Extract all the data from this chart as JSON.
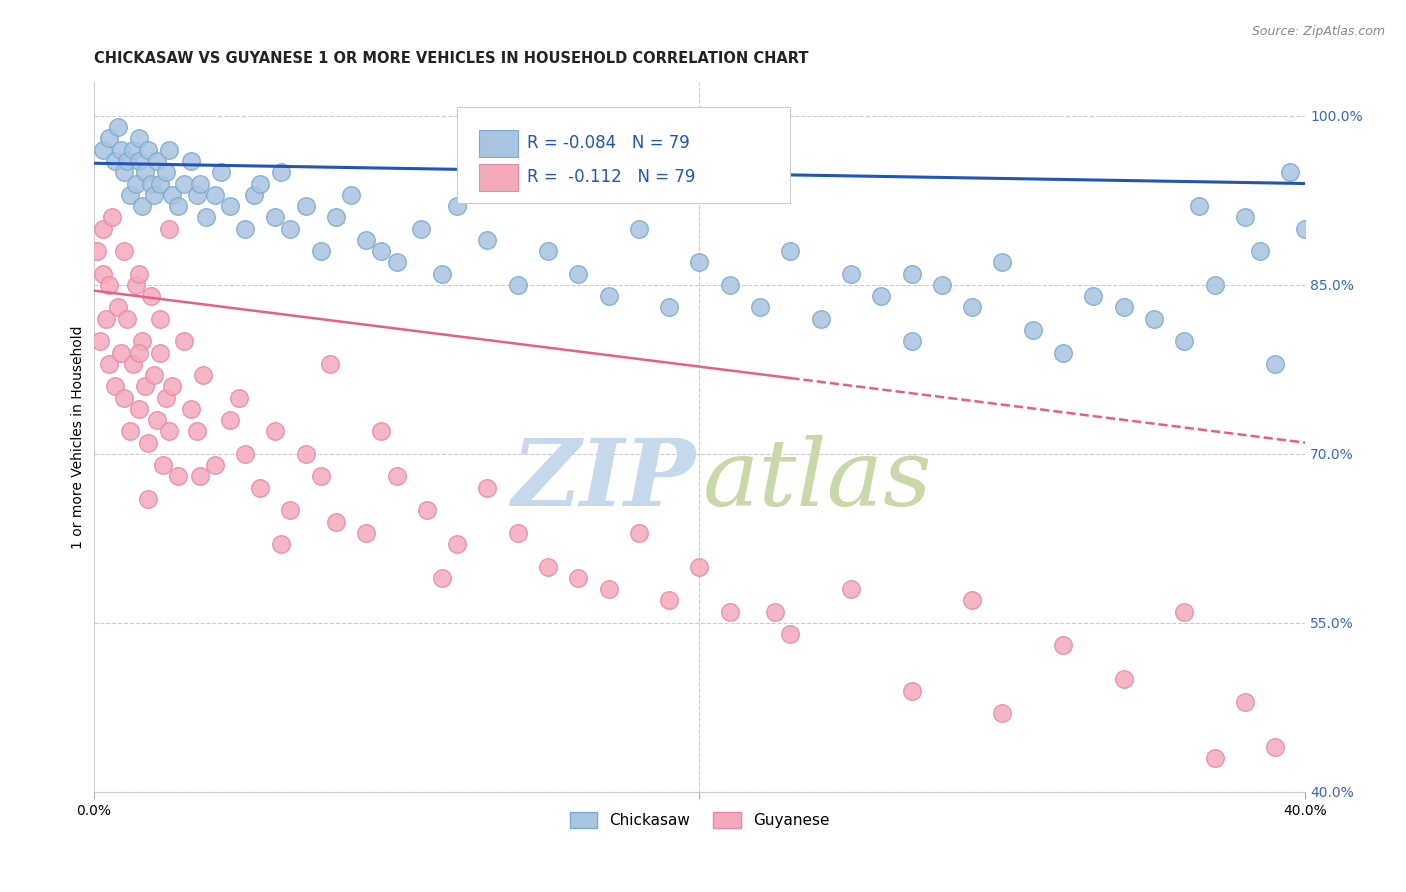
{
  "title": "CHICKASAW VS GUYANESE 1 OR MORE VEHICLES IN HOUSEHOLD CORRELATION CHART",
  "source": "Source: ZipAtlas.com",
  "ylabel": "1 or more Vehicles in Household",
  "legend_blue_label": "Chickasaw",
  "legend_pink_label": "Guyanese",
  "R_blue": -0.084,
  "N_blue": 79,
  "R_pink": -0.112,
  "N_pink": 79,
  "blue_scatter_color": "#A8C4E0",
  "blue_edge_color": "#7AAAD0",
  "pink_scatter_color": "#F4AABB",
  "pink_edge_color": "#E888AA",
  "trendline_blue_color": "#2255BB",
  "trendline_pink_color": "#E8607A",
  "watermark_zip_color": "#C5D8EC",
  "watermark_atlas_color": "#C8D8A8",
  "background_color": "#FFFFFF",
  "grid_color": "#CCCCCC",
  "xmin": 0.0,
  "xmax": 40.0,
  "ymin": 40.0,
  "ymax": 103.0,
  "yticks": [
    40.0,
    55.0,
    70.0,
    85.0,
    100.0
  ],
  "ytick_labels": [
    "40.0%",
    "55.0%",
    "70.0%",
    "85.0%",
    "100.0%"
  ],
  "blue_trend_y0": 95.8,
  "blue_trend_y1": 94.0,
  "pink_trend_y0": 84.5,
  "pink_trend_y1": 71.0,
  "pink_solid_end_x": 23.0,
  "chickasaw_x": [
    0.3,
    0.5,
    0.7,
    0.8,
    0.9,
    1.0,
    1.1,
    1.2,
    1.3,
    1.4,
    1.5,
    1.5,
    1.6,
    1.7,
    1.8,
    1.9,
    2.0,
    2.1,
    2.2,
    2.4,
    2.5,
    2.6,
    2.8,
    3.0,
    3.2,
    3.4,
    3.5,
    3.7,
    4.0,
    4.2,
    4.5,
    5.0,
    5.3,
    5.5,
    6.0,
    6.2,
    6.5,
    7.0,
    7.5,
    8.0,
    8.5,
    9.0,
    9.5,
    10.0,
    10.8,
    11.5,
    12.0,
    13.0,
    14.0,
    15.0,
    16.0,
    17.0,
    18.0,
    19.0,
    20.0,
    21.0,
    22.0,
    23.0,
    24.0,
    25.0,
    26.0,
    27.0,
    28.0,
    29.0,
    30.0,
    31.0,
    32.0,
    33.0,
    35.0,
    36.0,
    37.0,
    38.0,
    38.5,
    39.0,
    39.5,
    40.0,
    27.0,
    36.5,
    34.0
  ],
  "chickasaw_y": [
    97,
    98,
    96,
    99,
    97,
    95,
    96,
    93,
    97,
    94,
    96,
    98,
    92,
    95,
    97,
    94,
    93,
    96,
    94,
    95,
    97,
    93,
    92,
    94,
    96,
    93,
    94,
    91,
    93,
    95,
    92,
    90,
    93,
    94,
    91,
    95,
    90,
    92,
    88,
    91,
    93,
    89,
    88,
    87,
    90,
    86,
    92,
    89,
    85,
    88,
    86,
    84,
    90,
    83,
    87,
    85,
    83,
    88,
    82,
    86,
    84,
    80,
    85,
    83,
    87,
    81,
    79,
    84,
    82,
    80,
    85,
    91,
    88,
    78,
    95,
    90,
    86,
    92,
    83
  ],
  "guyanese_x": [
    0.1,
    0.2,
    0.3,
    0.3,
    0.4,
    0.5,
    0.5,
    0.6,
    0.7,
    0.8,
    0.9,
    1.0,
    1.0,
    1.1,
    1.2,
    1.3,
    1.4,
    1.5,
    1.6,
    1.7,
    1.8,
    1.9,
    2.0,
    2.1,
    2.2,
    2.3,
    2.4,
    2.5,
    2.6,
    2.8,
    3.0,
    3.2,
    3.4,
    3.6,
    4.0,
    4.5,
    5.0,
    5.5,
    6.0,
    6.5,
    7.0,
    7.5,
    8.0,
    9.0,
    10.0,
    11.0,
    12.0,
    13.0,
    14.0,
    15.0,
    16.0,
    17.0,
    18.0,
    19.0,
    20.0,
    21.0,
    22.5,
    23.0,
    25.0,
    27.0,
    29.0,
    30.0,
    32.0,
    34.0,
    36.0,
    37.0,
    38.0,
    39.0,
    1.5,
    1.5,
    1.8,
    2.2,
    2.5,
    3.5,
    4.8,
    6.2,
    7.8,
    9.5,
    11.5
  ],
  "guyanese_y": [
    88,
    80,
    86,
    90,
    82,
    78,
    85,
    91,
    76,
    83,
    79,
    75,
    88,
    82,
    72,
    78,
    85,
    74,
    80,
    76,
    71,
    84,
    77,
    73,
    79,
    69,
    75,
    72,
    76,
    68,
    80,
    74,
    72,
    77,
    69,
    73,
    70,
    67,
    72,
    65,
    70,
    68,
    64,
    63,
    68,
    65,
    62,
    67,
    63,
    60,
    59,
    58,
    63,
    57,
    60,
    56,
    56,
    54,
    58,
    49,
    57,
    47,
    53,
    50,
    56,
    43,
    48,
    44,
    86,
    79,
    66,
    82,
    90,
    68,
    75,
    62,
    78,
    72,
    59
  ]
}
